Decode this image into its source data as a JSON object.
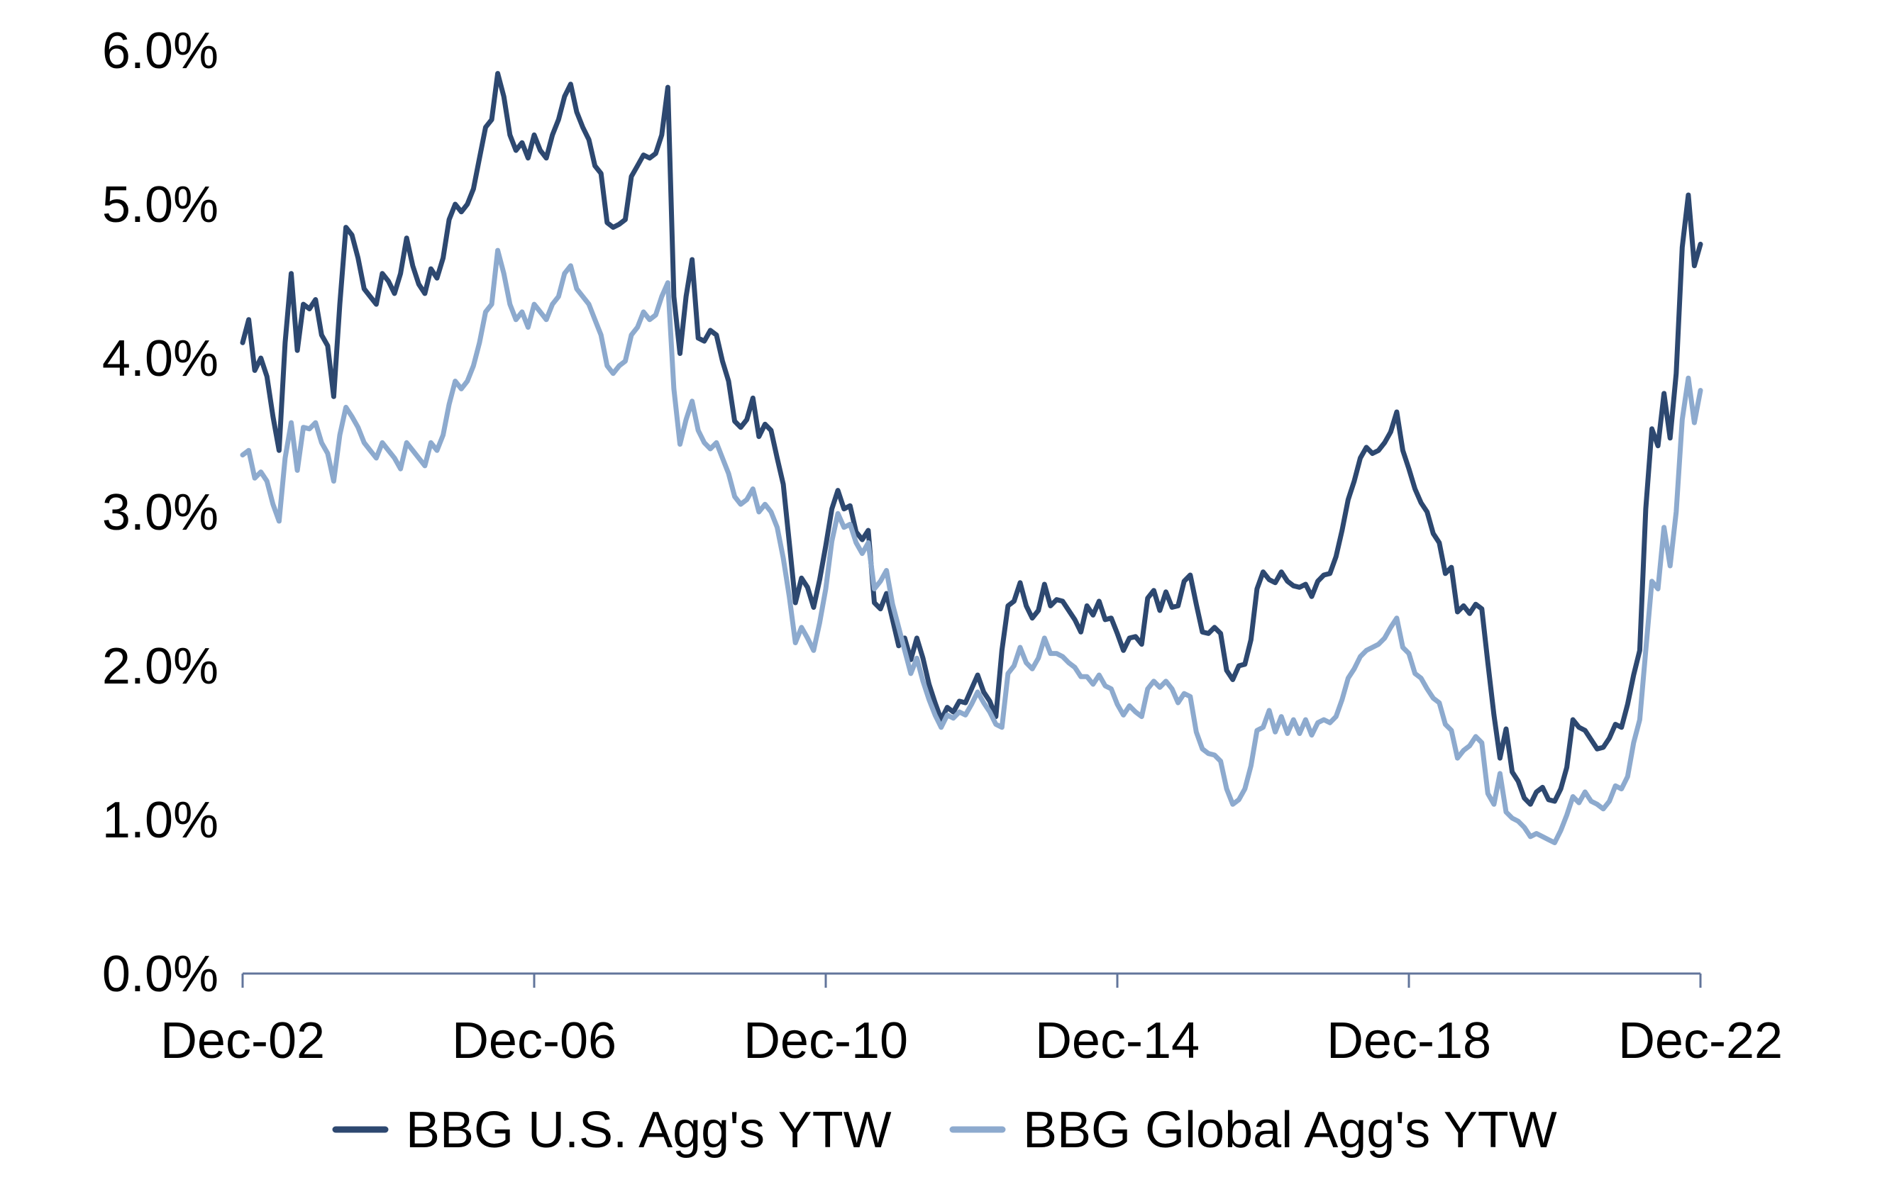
{
  "chart_data": {
    "type": "line",
    "title": "",
    "x_axis": {
      "tick_labels": [
        "Dec-02",
        "Dec-06",
        "Dec-10",
        "Dec-14",
        "Dec-18",
        "Dec-22"
      ],
      "start_month": "Dec-02",
      "end_month": "Dec-22",
      "tick_interval_months": 48,
      "total_months": 240
    },
    "y_axis": {
      "tick_labels": [
        "0.0%",
        "1.0%",
        "2.0%",
        "3.0%",
        "4.0%",
        "5.0%",
        "6.0%"
      ],
      "min": 0,
      "max": 6,
      "unit": "%"
    },
    "grid": false,
    "legend_position": "bottom-center",
    "series": [
      {
        "name": "BBG U.S. Agg's YTW",
        "color": "#2D4870",
        "values": [
          4.1,
          4.25,
          3.92,
          4.0,
          3.88,
          3.62,
          3.4,
          4.1,
          4.55,
          4.05,
          4.35,
          4.32,
          4.38,
          4.15,
          4.08,
          3.75,
          4.35,
          4.85,
          4.8,
          4.65,
          4.45,
          4.4,
          4.35,
          4.55,
          4.5,
          4.42,
          4.55,
          4.78,
          4.6,
          4.48,
          4.42,
          4.58,
          4.52,
          4.65,
          4.9,
          5.0,
          4.95,
          5.0,
          5.1,
          5.3,
          5.5,
          5.55,
          5.85,
          5.7,
          5.45,
          5.35,
          5.4,
          5.3,
          5.45,
          5.35,
          5.3,
          5.45,
          5.55,
          5.7,
          5.78,
          5.6,
          5.5,
          5.42,
          5.25,
          5.2,
          4.88,
          4.85,
          4.87,
          4.9,
          5.18,
          5.25,
          5.32,
          5.3,
          5.33,
          5.45,
          5.76,
          4.4,
          4.03,
          4.4,
          4.64,
          4.13,
          4.11,
          4.18,
          4.15,
          3.98,
          3.85,
          3.59,
          3.55,
          3.6,
          3.74,
          3.49,
          3.57,
          3.53,
          3.35,
          3.18,
          2.8,
          2.41,
          2.57,
          2.51,
          2.38,
          2.56,
          2.78,
          3.02,
          3.14,
          3.02,
          3.04,
          2.87,
          2.82,
          2.88,
          2.41,
          2.37,
          2.47,
          2.3,
          2.13,
          2.18,
          2.04,
          2.18,
          2.05,
          1.88,
          1.76,
          1.65,
          1.73,
          1.7,
          1.77,
          1.76,
          1.85,
          1.94,
          1.83,
          1.77,
          1.67,
          2.1,
          2.39,
          2.42,
          2.54,
          2.39,
          2.31,
          2.36,
          2.53,
          2.39,
          2.43,
          2.42,
          2.36,
          2.3,
          2.22,
          2.39,
          2.33,
          2.42,
          2.3,
          2.31,
          2.21,
          2.1,
          2.18,
          2.19,
          2.14,
          2.44,
          2.49,
          2.36,
          2.48,
          2.38,
          2.39,
          2.55,
          2.59,
          2.4,
          2.22,
          2.21,
          2.25,
          2.21,
          1.97,
          1.91,
          2.0,
          2.01,
          2.17,
          2.5,
          2.61,
          2.56,
          2.54,
          2.61,
          2.55,
          2.52,
          2.51,
          2.53,
          2.45,
          2.55,
          2.59,
          2.6,
          2.71,
          2.88,
          3.08,
          3.2,
          3.35,
          3.42,
          3.38,
          3.4,
          3.45,
          3.52,
          3.65,
          3.4,
          3.28,
          3.15,
          3.06,
          3.0,
          2.86,
          2.8,
          2.6,
          2.64,
          2.35,
          2.39,
          2.34,
          2.4,
          2.37,
          2.02,
          1.68,
          1.4,
          1.59,
          1.31,
          1.25,
          1.14,
          1.1,
          1.18,
          1.21,
          1.13,
          1.12,
          1.2,
          1.34,
          1.65,
          1.6,
          1.58,
          1.52,
          1.46,
          1.47,
          1.53,
          1.62,
          1.6,
          1.75,
          1.94,
          2.1,
          3.02,
          3.54,
          3.43,
          3.77,
          3.48,
          3.9,
          4.72,
          5.06,
          4.6,
          4.74
        ]
      },
      {
        "name": "BBG Global Agg's YTW",
        "color": "#8DAACE",
        "values": [
          3.37,
          3.4,
          3.22,
          3.26,
          3.2,
          3.05,
          2.94,
          3.35,
          3.58,
          3.27,
          3.55,
          3.54,
          3.58,
          3.45,
          3.38,
          3.2,
          3.5,
          3.68,
          3.62,
          3.55,
          3.45,
          3.4,
          3.35,
          3.45,
          3.4,
          3.35,
          3.28,
          3.45,
          3.4,
          3.35,
          3.3,
          3.45,
          3.4,
          3.5,
          3.7,
          3.85,
          3.8,
          3.85,
          3.95,
          4.1,
          4.3,
          4.35,
          4.7,
          4.55,
          4.35,
          4.25,
          4.3,
          4.2,
          4.35,
          4.3,
          4.25,
          4.35,
          4.4,
          4.55,
          4.6,
          4.45,
          4.4,
          4.35,
          4.25,
          4.15,
          3.95,
          3.9,
          3.95,
          3.98,
          4.15,
          4.2,
          4.3,
          4.25,
          4.28,
          4.4,
          4.49,
          3.8,
          3.44,
          3.6,
          3.72,
          3.53,
          3.45,
          3.41,
          3.45,
          3.35,
          3.25,
          3.1,
          3.05,
          3.08,
          3.15,
          3.0,
          3.05,
          3.0,
          2.9,
          2.7,
          2.45,
          2.15,
          2.25,
          2.18,
          2.1,
          2.28,
          2.5,
          2.81,
          2.99,
          2.9,
          2.92,
          2.8,
          2.73,
          2.8,
          2.5,
          2.55,
          2.62,
          2.4,
          2.25,
          2.1,
          1.95,
          2.05,
          1.9,
          1.78,
          1.68,
          1.6,
          1.68,
          1.66,
          1.7,
          1.68,
          1.75,
          1.83,
          1.76,
          1.7,
          1.62,
          1.6,
          1.95,
          2.0,
          2.12,
          2.02,
          1.98,
          2.05,
          2.18,
          2.08,
          2.08,
          2.06,
          2.02,
          1.99,
          1.93,
          1.93,
          1.88,
          1.94,
          1.87,
          1.85,
          1.75,
          1.68,
          1.74,
          1.7,
          1.67,
          1.85,
          1.9,
          1.86,
          1.9,
          1.85,
          1.76,
          1.82,
          1.8,
          1.57,
          1.46,
          1.43,
          1.42,
          1.38,
          1.2,
          1.1,
          1.13,
          1.2,
          1.35,
          1.58,
          1.6,
          1.71,
          1.57,
          1.67,
          1.56,
          1.65,
          1.56,
          1.65,
          1.55,
          1.63,
          1.65,
          1.63,
          1.67,
          1.78,
          1.92,
          1.98,
          2.06,
          2.1,
          2.12,
          2.14,
          2.18,
          2.25,
          2.31,
          2.12,
          2.08,
          1.95,
          1.92,
          1.85,
          1.79,
          1.76,
          1.62,
          1.58,
          1.4,
          1.45,
          1.48,
          1.54,
          1.5,
          1.17,
          1.1,
          1.3,
          1.05,
          1.01,
          0.99,
          0.95,
          0.89,
          0.91,
          0.89,
          0.87,
          0.85,
          0.93,
          1.03,
          1.15,
          1.11,
          1.18,
          1.12,
          1.1,
          1.07,
          1.12,
          1.22,
          1.2,
          1.28,
          1.5,
          1.65,
          2.1,
          2.55,
          2.5,
          2.9,
          2.65,
          3.0,
          3.6,
          3.87,
          3.58,
          3.79
        ]
      }
    ],
    "style": {
      "axis_color": "#62759B",
      "text_color": "#000000",
      "background": "#FFFFFF"
    }
  }
}
